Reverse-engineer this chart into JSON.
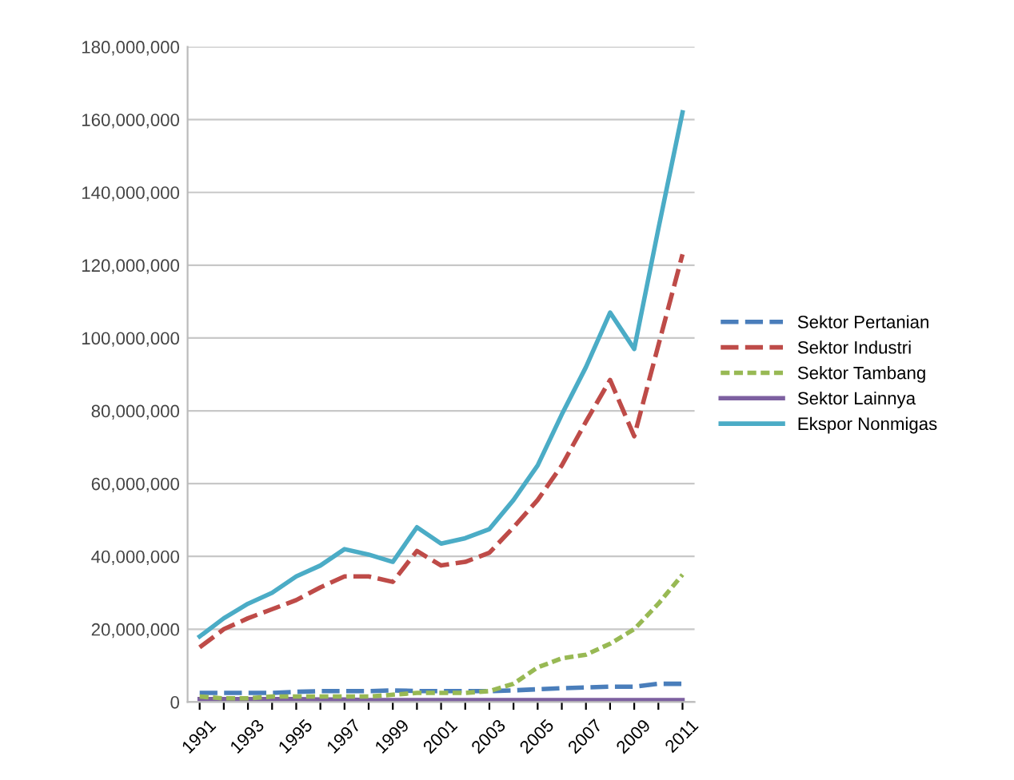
{
  "chart_data": {
    "type": "line",
    "categories": [
      "1991",
      null,
      "1993",
      null,
      "1995",
      null,
      "1997",
      null,
      "1999",
      null,
      "2001",
      null,
      "2003",
      null,
      "2005",
      null,
      "2007",
      null,
      "2009",
      null,
      "2011"
    ],
    "series": [
      {
        "name": "Sektor Pertanian",
        "color": "#4a7ebb",
        "line_style": "dashed",
        "values": [
          2500000,
          2500000,
          2500000,
          2500000,
          2800000,
          3000000,
          3000000,
          3000000,
          3200000,
          3000000,
          3000000,
          3000000,
          3000000,
          3200000,
          3500000,
          3800000,
          4000000,
          4200000,
          4200000,
          5000000,
          5000000
        ]
      },
      {
        "name": "Sektor Industri",
        "color": "#be4b48",
        "line_style": "dashed",
        "values": [
          15000000,
          20000000,
          23000000,
          25500000,
          28000000,
          31500000,
          34500000,
          34500000,
          33000000,
          41500000,
          37500000,
          38500000,
          41000000,
          48000000,
          55500000,
          65000000,
          77000000,
          88500000,
          73000000,
          98000000,
          123000000
        ]
      },
      {
        "name": "Sektor Tambang",
        "color": "#98b954",
        "line_style": "dotted",
        "values": [
          1500000,
          1000000,
          1000000,
          1500000,
          1500000,
          1500000,
          1500000,
          1500000,
          2000000,
          2500000,
          2500000,
          2500000,
          3000000,
          5000000,
          9500000,
          12000000,
          13000000,
          16000000,
          20000000,
          27000000,
          35000000
        ]
      },
      {
        "name": "Sektor Lainnya",
        "color": "#7d60a0",
        "line_style": "solid",
        "values": [
          800000,
          800000,
          800000,
          800000,
          800000,
          700000,
          700000,
          500000,
          500000,
          500000,
          500000,
          500000,
          500000,
          500000,
          500000,
          500000,
          500000,
          500000,
          500000,
          500000,
          500000
        ]
      },
      {
        "name": "Ekspor Nonmigas",
        "color": "#4bacc6",
        "line_style": "solid",
        "values": [
          18000000,
          23000000,
          27000000,
          30000000,
          34500000,
          37500000,
          42000000,
          40500000,
          38500000,
          48000000,
          43500000,
          45000000,
          47500000,
          55500000,
          65000000,
          79000000,
          92000000,
          107000000,
          97000000,
          130000000,
          162000000
        ]
      }
    ],
    "ylim": [
      0,
      180000000
    ],
    "yticks": [
      {
        "value": 0,
        "label": "0"
      },
      {
        "value": 20000000,
        "label": "20,000,000"
      },
      {
        "value": 40000000,
        "label": "40,000,000"
      },
      {
        "value": 60000000,
        "label": "60,000,000"
      },
      {
        "value": 80000000,
        "label": "80,000,000"
      },
      {
        "value": 100000000,
        "label": "100,000,000"
      },
      {
        "value": 120000000,
        "label": "120,000,000"
      },
      {
        "value": 140000000,
        "label": "140,000,000"
      },
      {
        "value": 160000000,
        "label": "160,000,000"
      },
      {
        "value": 180000000,
        "label": "180,000,000"
      }
    ],
    "grid": "y",
    "legend": "right"
  }
}
